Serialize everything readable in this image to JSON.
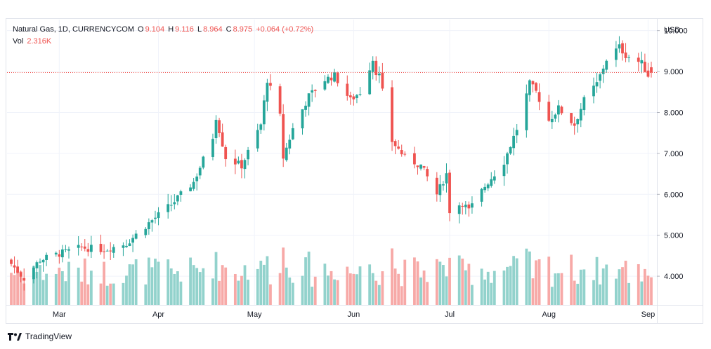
{
  "legend": {
    "symbol": "Natural Gas, 1D, CURRENCYCOM",
    "o_label": "O",
    "o_value": "9.104",
    "h_label": "H",
    "h_value": "9.116",
    "l_label": "L",
    "l_value": "8.964",
    "c_label": "C",
    "c_value": "8.975",
    "change": "+0.064 (+0.72%)",
    "vol_label": "Vol",
    "vol_value": "2.316K"
  },
  "footer": {
    "brand": "TradingView"
  },
  "colors": {
    "up": "#26a69a",
    "down": "#ef5350",
    "up_vol": "#92d2cc",
    "down_vol": "#f7a9a7",
    "price_line": "#ef5350"
  },
  "chart_data": {
    "type": "candlestick",
    "currency": "USD",
    "y_ticks": [
      "10.000",
      "9.000",
      "8.000",
      "7.000",
      "6.000",
      "5.000",
      "4.000"
    ],
    "ylim": [
      3.3,
      10.2
    ],
    "x_ticks": [
      {
        "label": "Mar",
        "date": "2022-03-01"
      },
      {
        "label": "Apr",
        "date": "2022-04-01"
      },
      {
        "label": "May",
        "date": "2022-05-01"
      },
      {
        "label": "Jun",
        "date": "2022-06-01"
      },
      {
        "label": "Jul",
        "date": "2022-07-01"
      },
      {
        "label": "Aug",
        "date": "2022-08-01"
      },
      {
        "label": "Sep",
        "date": "2022-09-01"
      }
    ],
    "last_close": 8.975,
    "date_range": [
      "2022-02-14",
      "2022-09-02"
    ],
    "close_anchors": [
      [
        "2022-02-14",
        4.3
      ],
      [
        "2022-02-18",
        3.95
      ],
      [
        "2022-02-23",
        4.4
      ],
      [
        "2022-03-01",
        4.55
      ],
      [
        "2022-03-08",
        4.7
      ],
      [
        "2022-03-15",
        4.65
      ],
      [
        "2022-03-22",
        4.8
      ],
      [
        "2022-03-29",
        5.3
      ],
      [
        "2022-04-05",
        5.75
      ],
      [
        "2022-04-12",
        6.3
      ],
      [
        "2022-04-18",
        7.4
      ],
      [
        "2022-04-19",
        7.9
      ],
      [
        "2022-04-22",
        6.9
      ],
      [
        "2022-04-27",
        6.7
      ],
      [
        "2022-05-03",
        7.7
      ],
      [
        "2022-05-05",
        8.8
      ],
      [
        "2022-05-09",
        7.9
      ],
      [
        "2022-05-10",
        6.9
      ],
      [
        "2022-05-13",
        7.6
      ],
      [
        "2022-05-18",
        8.4
      ],
      [
        "2022-05-23",
        8.8
      ],
      [
        "2022-05-26",
        8.9
      ],
      [
        "2022-05-31",
        8.3
      ],
      [
        "2022-06-03",
        8.5
      ],
      [
        "2022-06-07",
        9.3
      ],
      [
        "2022-06-08",
        9.0
      ],
      [
        "2022-06-09",
        8.9
      ],
      [
        "2022-06-13",
        7.3
      ],
      [
        "2022-06-17",
        6.9
      ],
      [
        "2022-06-22",
        6.7
      ],
      [
        "2022-06-27",
        6.0
      ],
      [
        "2022-06-30",
        6.5
      ],
      [
        "2022-07-01",
        5.6
      ],
      [
        "2022-07-05",
        5.8
      ],
      [
        "2022-07-07",
        5.6
      ],
      [
        "2022-07-12",
        6.2
      ],
      [
        "2022-07-18",
        6.8
      ],
      [
        "2022-07-22",
        7.6
      ],
      [
        "2022-07-26",
        8.7
      ],
      [
        "2022-07-28",
        8.5
      ],
      [
        "2022-08-01",
        7.8
      ],
      [
        "2022-08-04",
        8.1
      ],
      [
        "2022-08-09",
        7.7
      ],
      [
        "2022-08-12",
        8.3
      ],
      [
        "2022-08-16",
        8.7
      ],
      [
        "2022-08-19",
        9.3
      ],
      [
        "2022-08-23",
        9.6
      ],
      [
        "2022-08-25",
        9.4
      ],
      [
        "2022-08-30",
        9.2
      ],
      [
        "2022-09-01",
        8.91
      ],
      [
        "2022-09-02",
        8.975
      ]
    ],
    "volume_range_k": [
      1.0,
      4.6
    ]
  }
}
